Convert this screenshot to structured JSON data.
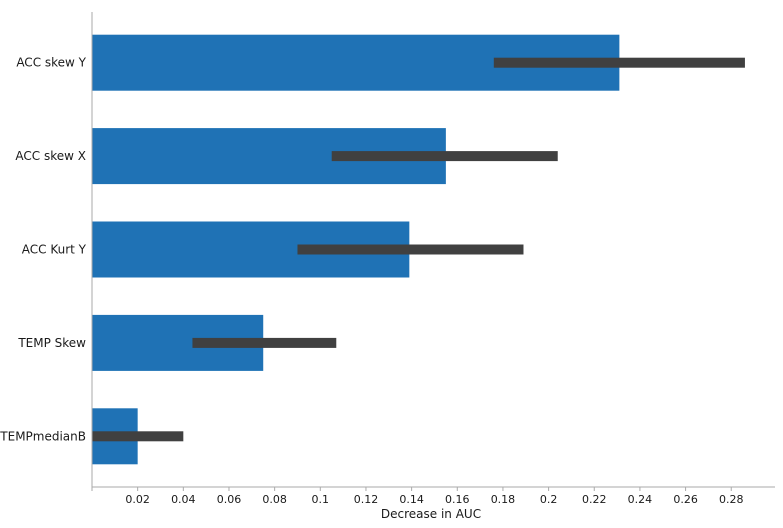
{
  "chart_data": {
    "type": "bar",
    "orientation": "horizontal",
    "xlabel": "Decrease in AUC",
    "ylabel": "",
    "xlim": [
      0,
      0.3
    ],
    "xticks": [
      0.02,
      0.04,
      0.06,
      0.08,
      0.1,
      0.12,
      0.14,
      0.16,
      0.18,
      0.2,
      0.22,
      0.24,
      0.26,
      0.28
    ],
    "xtick_labels": [
      "0.02",
      "0.04",
      "0.06",
      "0.08",
      "0.1",
      "0.12",
      "0.14",
      "0.16",
      "0.18",
      "0.2",
      "0.22",
      "0.24",
      "0.26",
      "0.28"
    ],
    "categories": [
      "ACC skew Y",
      "ACC skew X",
      "ACC Kurt Y",
      "TEMP Skew",
      "TEMPmedianB"
    ],
    "values": [
      0.231,
      0.155,
      0.139,
      0.075,
      0.02
    ],
    "error_low": [
      0.176,
      0.105,
      0.09,
      0.044,
      0.0
    ],
    "error_high": [
      0.286,
      0.204,
      0.189,
      0.107,
      0.04
    ],
    "grid": false,
    "legend": "none",
    "colors": {
      "bar": "#1f72b5",
      "error": "#404040",
      "axis": "#aaaaaa"
    }
  }
}
